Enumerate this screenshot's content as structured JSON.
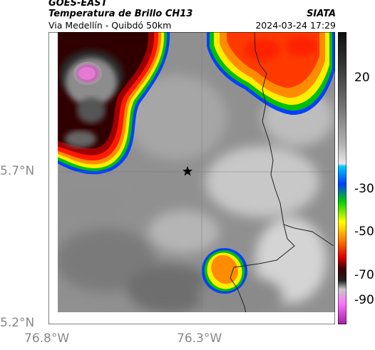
{
  "header": {
    "source": "GOES-EAST",
    "product": "Temperatura de Brillo CH13",
    "region": "Via Medellín - Quibdó 50km",
    "agency": "SIATA",
    "timestamp": "2024-03-24 17:29"
  },
  "map": {
    "lat_labels": [
      "5.7°N",
      "5.2°N"
    ],
    "lon_labels": [
      "76.8°W",
      "76.3°W"
    ],
    "marker_icon": "star-icon",
    "colors": {
      "cold_core": "#e04fc0",
      "warm_cloud": "#ff2a00",
      "clear": "#9a9a9a",
      "border": "#222222"
    }
  },
  "colorbar": {
    "labels": [
      "20",
      "-30",
      "-50",
      "-70",
      "-90"
    ],
    "stops": [
      "#101010",
      "#404040",
      "#808080",
      "#b0b0b0",
      "#e0e0e0",
      "#00b0ff",
      "#0060ff",
      "#00d000",
      "#ffff00",
      "#ff8000",
      "#ff0000",
      "#300000",
      "#c0c0c0",
      "#ff40ff"
    ]
  }
}
